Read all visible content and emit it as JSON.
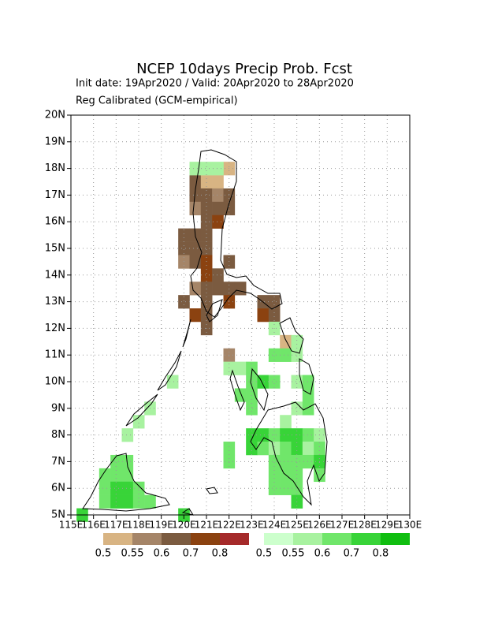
{
  "chart_data": {
    "type": "grid_map",
    "title": "NCEP 10days Precip Prob. Fcst",
    "subtitle": "Init date: 19Apr2020 / Valid: 20Apr2020 to 28Apr2020",
    "subtitle2": "Reg Calibrated (GCM-empirical)",
    "xlim": [
      115,
      130
    ],
    "ylim": [
      5,
      20
    ],
    "xticks": [
      {
        "value": 115,
        "label": "115E"
      },
      {
        "value": 116,
        "label": "116E"
      },
      {
        "value": 117,
        "label": "117E"
      },
      {
        "value": 118,
        "label": "118E"
      },
      {
        "value": 119,
        "label": "119E"
      },
      {
        "value": 120,
        "label": "120E"
      },
      {
        "value": 121,
        "label": "121E"
      },
      {
        "value": 122,
        "label": "122E"
      },
      {
        "value": 123,
        "label": "123E"
      },
      {
        "value": 124,
        "label": "124E"
      },
      {
        "value": 125,
        "label": "125E"
      },
      {
        "value": 126,
        "label": "126E"
      },
      {
        "value": 127,
        "label": "127E"
      },
      {
        "value": 128,
        "label": "128E"
      },
      {
        "value": 129,
        "label": "129E"
      },
      {
        "value": 130,
        "label": "130E"
      }
    ],
    "yticks": [
      {
        "value": 5,
        "label": "5N"
      },
      {
        "value": 6,
        "label": "6N"
      },
      {
        "value": 7,
        "label": "7N"
      },
      {
        "value": 8,
        "label": "8N"
      },
      {
        "value": 9,
        "label": "9N"
      },
      {
        "value": 10,
        "label": "10N"
      },
      {
        "value": 11,
        "label": "11N"
      },
      {
        "value": 12,
        "label": "12N"
      },
      {
        "value": 13,
        "label": "13N"
      },
      {
        "value": 14,
        "label": "14N"
      },
      {
        "value": 15,
        "label": "15N"
      },
      {
        "value": 16,
        "label": "16N"
      },
      {
        "value": 17,
        "label": "17N"
      },
      {
        "value": 18,
        "label": "18N"
      },
      {
        "value": 19,
        "label": "19N"
      },
      {
        "value": 20,
        "label": "20N"
      }
    ],
    "grid": true,
    "dry_legend": {
      "breaks": [
        0.5,
        0.55,
        0.6,
        0.7,
        0.8
      ],
      "colors": [
        "#d8b483",
        "#a58568",
        "#7b5b40",
        "#8b4210",
        "#a52a2a"
      ]
    },
    "wet_legend": {
      "breaks": [
        0.5,
        0.55,
        0.6,
        0.7,
        0.8
      ],
      "colors": [
        "#ccffcc",
        "#a8f2a0",
        "#70e66a",
        "#38d438",
        "#10be10"
      ]
    },
    "dry_cells": [
      [
        122,
        18,
        0.5
      ],
      [
        120.5,
        17.5,
        0.6
      ],
      [
        121,
        17.5,
        0.5
      ],
      [
        121.5,
        17.5,
        0.5
      ],
      [
        120.5,
        17,
        0.6
      ],
      [
        121,
        17,
        0.6
      ],
      [
        121.5,
        17,
        0.55
      ],
      [
        122,
        17,
        0.6
      ],
      [
        120.5,
        16.5,
        0.55
      ],
      [
        121,
        16.5,
        0.6
      ],
      [
        121.5,
        16.5,
        0.6
      ],
      [
        122,
        16.5,
        0.6
      ],
      [
        121,
        16,
        0.6
      ],
      [
        121.5,
        16,
        0.7
      ],
      [
        120,
        15.5,
        0.6
      ],
      [
        120.5,
        15.5,
        0.6
      ],
      [
        121,
        15.5,
        0.6
      ],
      [
        120,
        15,
        0.6
      ],
      [
        120.5,
        15,
        0.6
      ],
      [
        121,
        15,
        0.6
      ],
      [
        120,
        14.5,
        0.55
      ],
      [
        120.5,
        14.5,
        0.6
      ],
      [
        121,
        14.5,
        0.7
      ],
      [
        122,
        14.5,
        0.6
      ],
      [
        121,
        14,
        0.7
      ],
      [
        121.5,
        14,
        0.6
      ],
      [
        120.5,
        13.5,
        0.55
      ],
      [
        121,
        13.5,
        0.6
      ],
      [
        121.5,
        13.5,
        0.6
      ],
      [
        122,
        13.5,
        0.6
      ],
      [
        122.5,
        13.5,
        0.6
      ],
      [
        120,
        13,
        0.6
      ],
      [
        121,
        13,
        0.6
      ],
      [
        122,
        13,
        0.7
      ],
      [
        120.5,
        12.5,
        0.7
      ],
      [
        121,
        12.5,
        0.6
      ],
      [
        121,
        12,
        0.6
      ],
      [
        123.5,
        13,
        0.6
      ],
      [
        124,
        13,
        0.6
      ],
      [
        123.5,
        12.5,
        0.7
      ],
      [
        124,
        12.5,
        0.6
      ],
      [
        124.5,
        11.5,
        0.5
      ],
      [
        122,
        11,
        0.55
      ]
    ],
    "wet_cells": [
      [
        120.5,
        18,
        0.55
      ],
      [
        121,
        18,
        0.55
      ],
      [
        121.5,
        18,
        0.55
      ],
      [
        124,
        12,
        0.55
      ],
      [
        125,
        11.5,
        0.55
      ],
      [
        124,
        11,
        0.6
      ],
      [
        124.5,
        11,
        0.6
      ],
      [
        125,
        11,
        0.55
      ],
      [
        122,
        10.5,
        0.55
      ],
      [
        122.5,
        10.5,
        0.55
      ],
      [
        123,
        10.5,
        0.6
      ],
      [
        123,
        10,
        0.6
      ],
      [
        123.5,
        10,
        0.7
      ],
      [
        124,
        10,
        0.6
      ],
      [
        125,
        10,
        0.55
      ],
      [
        125.5,
        10,
        0.6
      ],
      [
        122.5,
        9.5,
        0.6
      ],
      [
        123,
        9.5,
        0.6
      ],
      [
        125.5,
        9.5,
        0.6
      ],
      [
        123,
        9,
        0.6
      ],
      [
        125,
        9,
        0.55
      ],
      [
        125.5,
        9,
        0.6
      ],
      [
        124.5,
        8.5,
        0.55
      ],
      [
        123,
        8,
        0.7
      ],
      [
        123.5,
        8,
        0.7
      ],
      [
        124,
        8,
        0.6
      ],
      [
        124.5,
        8,
        0.7
      ],
      [
        125,
        8,
        0.7
      ],
      [
        125.5,
        8,
        0.6
      ],
      [
        126,
        8,
        0.55
      ],
      [
        122,
        7.5,
        0.6
      ],
      [
        123,
        7.5,
        0.7
      ],
      [
        123.5,
        7.5,
        0.6
      ],
      [
        124,
        7.5,
        0.55
      ],
      [
        124.5,
        7.5,
        0.6
      ],
      [
        125,
        7.5,
        0.7
      ],
      [
        125.5,
        7.5,
        0.55
      ],
      [
        126,
        7.5,
        0.6
      ],
      [
        122,
        7,
        0.6
      ],
      [
        124,
        7,
        0.6
      ],
      [
        124.5,
        7,
        0.6
      ],
      [
        125,
        7,
        0.6
      ],
      [
        125.5,
        7,
        0.6
      ],
      [
        126,
        7,
        0.7
      ],
      [
        124,
        6.5,
        0.6
      ],
      [
        124.5,
        6.5,
        0.6
      ],
      [
        125,
        6.5,
        0.6
      ],
      [
        126,
        6.5,
        0.6
      ],
      [
        124,
        6,
        0.6
      ],
      [
        124.5,
        6,
        0.6
      ],
      [
        125,
        6,
        0.6
      ],
      [
        125,
        5.5,
        0.7
      ],
      [
        119.5,
        10,
        0.55
      ],
      [
        118.5,
        9,
        0.55
      ],
      [
        118,
        8.5,
        0.55
      ],
      [
        117.5,
        8,
        0.55
      ],
      [
        117,
        7,
        0.6
      ],
      [
        117.5,
        7,
        0.6
      ],
      [
        116.5,
        6.5,
        0.6
      ],
      [
        117,
        6.5,
        0.6
      ],
      [
        117.5,
        6.5,
        0.6
      ],
      [
        116.5,
        6,
        0.6
      ],
      [
        117,
        6,
        0.7
      ],
      [
        117.5,
        6,
        0.7
      ],
      [
        118,
        6,
        0.6
      ],
      [
        116.5,
        5.5,
        0.6
      ],
      [
        117,
        5.5,
        0.7
      ],
      [
        117.5,
        5.5,
        0.7
      ],
      [
        118,
        5.5,
        0.6
      ],
      [
        118.5,
        5.5,
        0.6
      ],
      [
        115.5,
        5,
        0.7
      ],
      [
        120,
        5,
        0.7
      ]
    ]
  }
}
